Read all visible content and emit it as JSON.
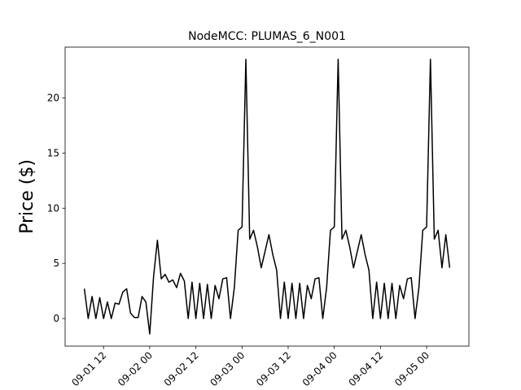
{
  "chart_data": {
    "type": "line",
    "title": "NodeMCC: PLUMAS_6_N001",
    "y_label": "Price ($)",
    "x": [
      "09-01 07",
      "09-01 08",
      "09-01 09",
      "09-01 10",
      "09-01 11",
      "09-01 12",
      "09-01 13",
      "09-01 14",
      "09-01 15",
      "09-01 16",
      "09-01 17",
      "09-01 18",
      "09-01 19",
      "09-01 20",
      "09-01 21",
      "09-01 22",
      "09-01 23",
      "09-02 00",
      "09-02 01",
      "09-02 02",
      "09-02 03",
      "09-02 04",
      "09-02 05",
      "09-02 06",
      "09-02 07",
      "09-02 08",
      "09-02 09",
      "09-02 10",
      "09-02 11",
      "09-02 12",
      "09-02 13",
      "09-02 14",
      "09-02 15",
      "09-02 16",
      "09-02 17",
      "09-02 18",
      "09-02 19",
      "09-02 20",
      "09-02 21",
      "09-02 22",
      "09-02 23",
      "09-03 00",
      "09-03 01",
      "09-03 02",
      "09-03 03",
      "09-03 04",
      "09-03 05",
      "09-03 06",
      "09-03 07",
      "09-03 08",
      "09-03 09",
      "09-03 10",
      "09-03 11",
      "09-03 12",
      "09-03 13",
      "09-03 14",
      "09-03 15",
      "09-03 16",
      "09-03 17",
      "09-03 18",
      "09-03 19",
      "09-03 20",
      "09-03 21",
      "09-03 22",
      "09-03 23",
      "09-04 00",
      "09-04 01",
      "09-04 02",
      "09-04 03",
      "09-04 04",
      "09-04 05",
      "09-04 06",
      "09-04 07",
      "09-04 08",
      "09-04 09",
      "09-04 10",
      "09-04 11",
      "09-04 12",
      "09-04 13",
      "09-04 14",
      "09-04 15",
      "09-04 16",
      "09-04 17",
      "09-04 18",
      "09-04 19",
      "09-04 20",
      "09-04 21",
      "09-04 22",
      "09-04 23",
      "09-05 00",
      "09-05 01",
      "09-05 02",
      "09-05 03",
      "09-05 04",
      "09-05 05",
      "09-05 06"
    ],
    "series": [
      {
        "color": "#000000",
        "values": [
          2.7,
          0,
          2.0,
          0,
          1.9,
          0,
          1.5,
          0,
          1.4,
          1.3,
          2.4,
          2.7,
          0.5,
          0.1,
          0.1,
          2.0,
          1.5,
          -1.4,
          3.8,
          7.1,
          3.6,
          4.0,
          3.3,
          3.5,
          2.8,
          4.1,
          3.4,
          0,
          3.3,
          0,
          3.2,
          0,
          3.1,
          0,
          3.0,
          1.8,
          3.6,
          3.7,
          0,
          2.8,
          8.0,
          8.3,
          23.5,
          7.2,
          8.0,
          6.5,
          4.6,
          6.1,
          7.6,
          5.8,
          4.4,
          0,
          3.3,
          0,
          3.2,
          0,
          3.2,
          0,
          3.0,
          1.8,
          3.6,
          3.7,
          0,
          2.8,
          8.0,
          8.3,
          23.5,
          7.2,
          8.0,
          6.5,
          4.6,
          6.1,
          7.6,
          5.8,
          4.4,
          0,
          3.3,
          0,
          3.2,
          0,
          3.2,
          0,
          3.0,
          1.8,
          3.6,
          3.7,
          0,
          2.8,
          8.0,
          8.3,
          23.5,
          7.2,
          8.0,
          4.6,
          7.6,
          4.6
        ]
      }
    ],
    "xlim": [
      "09-01 02",
      "09-05 11"
    ],
    "xticks": [
      "09-01 12",
      "09-02 00",
      "09-02 12",
      "09-03 00",
      "09-03 12",
      "09-04 00",
      "09-04 12",
      "09-05 00"
    ],
    "ylim": [
      -2.5,
      24.6
    ],
    "yticks": [
      0,
      5,
      10,
      15,
      20
    ]
  }
}
